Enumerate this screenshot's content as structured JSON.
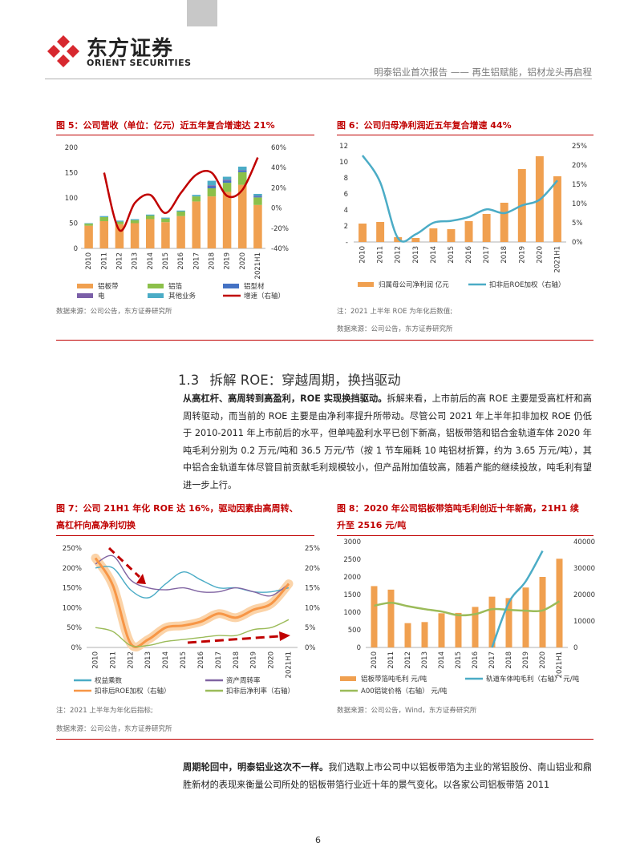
{
  "header": {
    "logo_cn": "东方证券",
    "logo_en": "ORIENT SECURITIES",
    "report_title": "明泰铝业首次报告 —— 再生铝赋能，铝材龙头再启程"
  },
  "fig5": {
    "title": "图 5：公司营收（单位：亿元）近五年复合增速达 21%",
    "source": "数据来源：公司公告，东方证券研究所",
    "chart_data": {
      "type": "bar",
      "stacked": true,
      "categories": [
        "2010",
        "2011",
        "2012",
        "2013",
        "2014",
        "2015",
        "2016",
        "2017",
        "2018",
        "2019",
        "2020",
        "2021H1"
      ],
      "y_left_ticks": [
        "0",
        "50",
        "100",
        "150",
        "200"
      ],
      "y_right_ticks": [
        "-40%",
        "-20%",
        "0%",
        "20%",
        "40%",
        "60%"
      ],
      "ylim_left": [
        0,
        200
      ],
      "ylim_right": [
        -40,
        60
      ],
      "series": [
        {
          "name": "铝板带",
          "color": "#f0a050",
          "values": [
            45,
            54,
            48,
            50,
            58,
            52,
            64,
            93,
            103,
            112,
            126,
            86
          ]
        },
        {
          "name": "铝箔",
          "color": "#8cc04a",
          "values": [
            4,
            8,
            5,
            6,
            7,
            7,
            9,
            10,
            16,
            18,
            25,
            15
          ]
        },
        {
          "name": "铝型材",
          "color": "#4472c4",
          "values": [
            0,
            0,
            0,
            0,
            0,
            0,
            0,
            0,
            4,
            4,
            3,
            2
          ]
        },
        {
          "name": "电",
          "color": "#7b5fa8",
          "values": [
            0,
            0,
            0,
            0,
            0,
            0,
            0,
            0,
            2,
            2,
            1,
            1
          ]
        },
        {
          "name": "其他业务",
          "color": "#4bacc6",
          "values": [
            1,
            2,
            2,
            2,
            2,
            2,
            2,
            3,
            9,
            6,
            7,
            4
          ]
        }
      ],
      "line": {
        "name": "增速（右轴）",
        "color": "#c00000",
        "values": [
          null,
          35,
          -22,
          5,
          13,
          -5,
          15,
          33,
          35,
          12,
          18,
          50
        ]
      }
    },
    "legend": [
      "铝板带",
      "铝箔",
      "铝型材",
      "电",
      "其他业务",
      "增速（右轴）"
    ]
  },
  "fig6": {
    "title": "图 6：公司归母净利润近五年复合增速 44%",
    "note": "注：2021 上半年 ROE 为年化后数值;",
    "source": "数据来源：公司公告，东方证券研究所",
    "chart_data": {
      "type": "bar",
      "categories": [
        "2010",
        "2011",
        "2012",
        "2013",
        "2014",
        "2015",
        "2016",
        "2017",
        "2018",
        "2019",
        "2020",
        "2021H1"
      ],
      "y_left_ticks": [
        "-",
        "2",
        "4",
        "6",
        "8",
        "10",
        "12"
      ],
      "y_right_ticks": [
        "0%",
        "5%",
        "10%",
        "15%",
        "20%",
        "25%"
      ],
      "ylim_left": [
        0,
        12
      ],
      "ylim_right": [
        0,
        25
      ],
      "bars": {
        "name": "归属母公司净利润 亿元",
        "color": "#f0a050",
        "values": [
          2.3,
          2.5,
          0.6,
          0.5,
          1.7,
          1.6,
          2.6,
          3.5,
          4.9,
          9.1,
          10.7,
          8.2
        ]
      },
      "line": {
        "name": "扣非后ROE加权（右轴）",
        "color": "#4bacc6",
        "values": [
          22.5,
          15.5,
          1,
          2,
          5,
          5.5,
          6.5,
          8.5,
          7.5,
          9.5,
          11,
          16
        ]
      }
    },
    "legend": [
      "归属母公司净利润 亿元",
      "扣非后ROE加权（右轴）"
    ]
  },
  "section": {
    "number": "1.3",
    "title": "拆解 ROE：穿越周期，换挡驱动"
  },
  "para1": {
    "bold": "从高杠杆、高周转到高盈利，ROE 实现换挡驱动。",
    "text": "拆解来看，上市前后的高 ROE 主要是受高杠杆和高周转驱动，而当前的 ROE 主要是由净利率提升所带动。尽管公司 2021 年上半年扣非加权 ROE 仍低于 2010-2011 年上市前后的水平，但单吨盈利水平已创下新高，铝板带箔和铝合金轨道车体 2020 年吨毛利分别为 0.2 万元/吨和 36.5 万元/节（按 1 节车厢耗 10 吨铝材折算，约为 3.65 万元/吨），其中铝合金轨道车体尽管目前贡献毛利规模较小，但产品附加值较高，随着产能的继续投放，吨毛利有望进一步上行。"
  },
  "fig7": {
    "title_line1": "图 7：公司 21H1 年化 ROE 达 16%，驱动因素由高周转、",
    "title_line2": "高杠杆向高净利切换",
    "note": "注：2021 上半年为年化后指标;",
    "source": "数据来源：公司公告，东方证券研究所",
    "chart_data": {
      "type": "line",
      "categories": [
        "2010",
        "2011",
        "2012",
        "2013",
        "2014",
        "2015",
        "2016",
        "2017",
        "2018",
        "2019",
        "2020",
        "2021H1"
      ],
      "y_left_ticks": [
        "0%",
        "50%",
        "100%",
        "150%",
        "200%",
        "250%"
      ],
      "y_right_ticks": [
        "0%",
        "5%",
        "10%",
        "15%",
        "20%",
        "25%"
      ],
      "ylim_left": [
        0,
        250
      ],
      "ylim_right": [
        0,
        25
      ],
      "series": [
        {
          "name": "权益乘数",
          "color": "#4bacc6",
          "axis": "left",
          "values": [
            200,
            200,
            145,
            125,
            160,
            190,
            170,
            150,
            150,
            140,
            140,
            150
          ]
        },
        {
          "name": "资产周转率",
          "color": "#8064a2",
          "axis": "left",
          "values": [
            210,
            230,
            170,
            150,
            145,
            150,
            140,
            140,
            150,
            140,
            130,
            160
          ]
        },
        {
          "name": "扣非后ROE加权（右轴）",
          "color": "#f79646",
          "axis": "right",
          "values": [
            22.5,
            15.5,
            1,
            2,
            5,
            5.5,
            6.5,
            8.5,
            7.5,
            9.5,
            11,
            16
          ]
        },
        {
          "name": "扣非后净利率（右轴）",
          "color": "#9bbb59",
          "axis": "right",
          "values": [
            5,
            4,
            0.5,
            0.5,
            1.5,
            2,
            2.5,
            3,
            3,
            4.5,
            5,
            7
          ]
        }
      ]
    },
    "legend": [
      "权益乘数",
      "资产周转率",
      "扣非后ROE加权（右轴）",
      "扣非后净利率（右轴）"
    ]
  },
  "fig8": {
    "title_line1": "图 8：2020 年公司铝板带箔吨毛利创近十年新高，21H1 续",
    "title_line2": "升至 2516 元/吨",
    "source": "数据来源：公司公告，Wind，东方证券研究所",
    "chart_data": {
      "type": "bar",
      "categories": [
        "2010",
        "2011",
        "2012",
        "2013",
        "2014",
        "2015",
        "2016",
        "2017",
        "2018",
        "2019",
        "2020",
        "2021H1"
      ],
      "y_left_ticks": [
        "0",
        "500",
        "1000",
        "1500",
        "2000",
        "2500",
        "3000"
      ],
      "y_right_ticks": [
        "0",
        "10000",
        "20000",
        "30000",
        "40000"
      ],
      "ylim_left": [
        0,
        3000
      ],
      "ylim_right": [
        0,
        40000
      ],
      "bars": {
        "name": "铝板带箔吨毛利 元/吨",
        "color": "#f0a050",
        "values": [
          1740,
          1640,
          690,
          720,
          970,
          980,
          1150,
          1440,
          1400,
          1700,
          2000,
          2516
        ]
      },
      "lines": [
        {
          "name": "轨道车体吨毛利（右轴） 元/吨",
          "color": "#4bacc6",
          "values": [
            null,
            null,
            null,
            null,
            null,
            null,
            null,
            0,
            17000,
            25000,
            36500,
            null
          ]
        },
        {
          "name": "A00铝锭价格（右轴） 元/吨",
          "color": "#9bbb59",
          "values": [
            15800,
            16900,
            15600,
            14500,
            13600,
            12200,
            12600,
            14500,
            14200,
            13900,
            14000,
            17500
          ]
        }
      ]
    },
    "legend": [
      "铝板带箔吨毛利 元/吨",
      "轨道车体吨毛利（右轴） 元/吨",
      "A00铝锭价格（右轴） 元/吨"
    ]
  },
  "para2": {
    "bold": "周期轮回中，明泰铝业这次不一样。",
    "text": "我们选取上市公司中以铝板带箔为主业的常铝股份、南山铝业和鼎胜新材的表现来衡量公司所处的铝板带箔行业近十年的景气变化。以各家公司铝板带箔 2011"
  },
  "page_number": "6"
}
